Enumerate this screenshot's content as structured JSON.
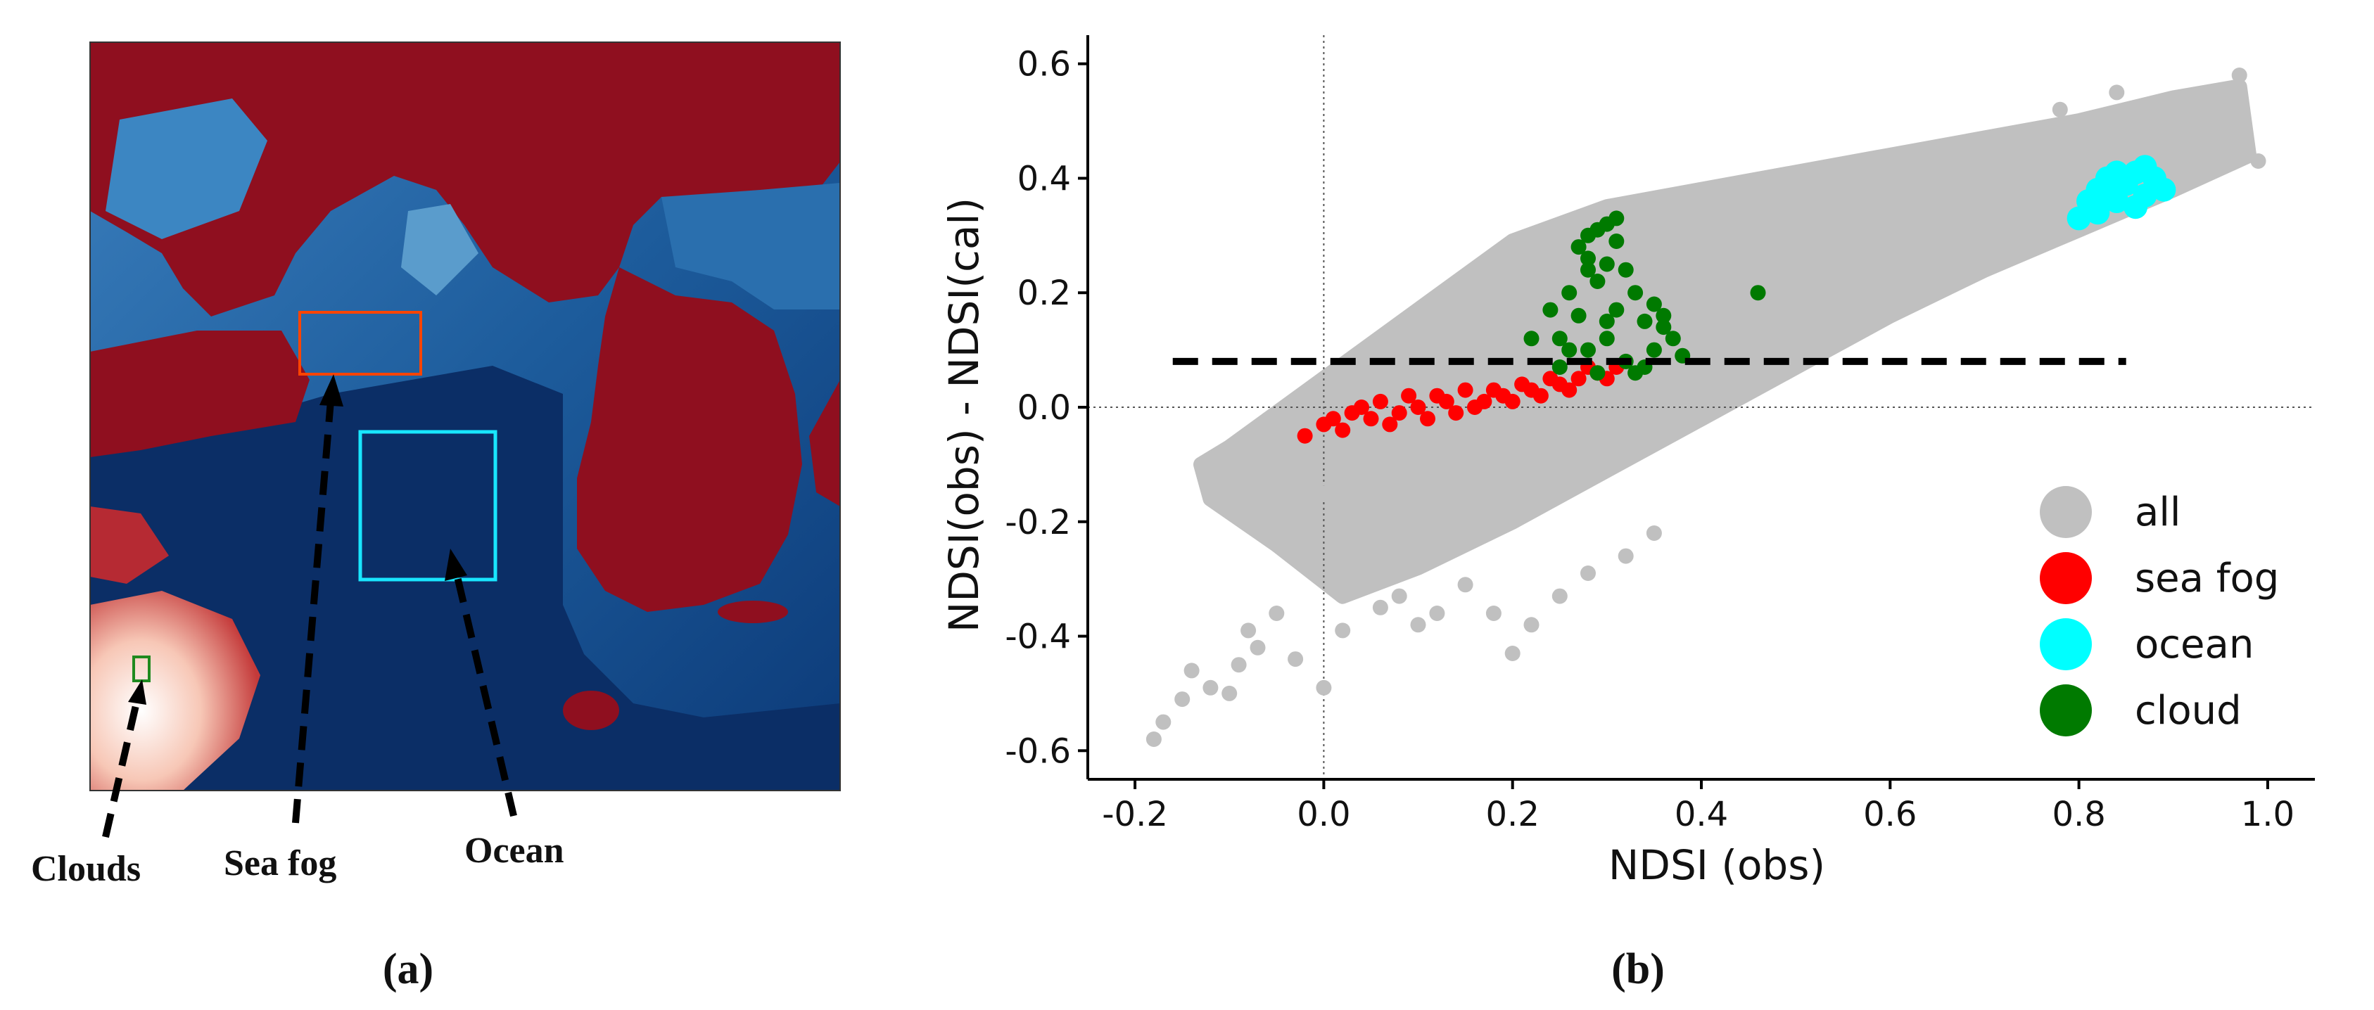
{
  "colors": {
    "land": "#8f0f1f",
    "ocean_deep": "#0b2e66",
    "ocean_mid": "#2466a6",
    "ocean_light": "#8fc3e0",
    "cloud": "#fde1d3",
    "fog_box": "#ff4400",
    "ocean_box": "#19e6ff",
    "cloud_box": "#1f8a1f",
    "all": "#c0c0c0",
    "sea_fog": "#ff0000",
    "ocean": "#00ffff",
    "cloud_pt": "#007a00"
  },
  "map": {
    "label_clouds": "Clouds",
    "label_sea_fog": "Sea fog",
    "label_ocean": "Ocean",
    "caption": "(a)"
  },
  "chart_data": {
    "type": "scatter",
    "title": "",
    "xlabel": "NDSI (obs)",
    "ylabel": "NDSI(obs) - NDSI(cal)",
    "xlim": [
      -0.25,
      1.05
    ],
    "ylim": [
      -0.65,
      0.65
    ],
    "xticks": [
      -0.2,
      0.0,
      0.2,
      0.4,
      0.6,
      0.8,
      1.0
    ],
    "xtick_labels": [
      "-0.2",
      "0.0",
      "0.2",
      "0.4",
      "0.6",
      "0.8",
      "1.0"
    ],
    "yticks": [
      -0.6,
      -0.4,
      -0.2,
      0.0,
      0.2,
      0.4,
      0.6
    ],
    "ytick_labels": [
      "-0.6",
      "-0.4",
      "-0.2",
      "0.0",
      "0.2",
      "0.4",
      "0.6"
    ],
    "reference_lines": {
      "x": 0.0,
      "y": 0.0
    },
    "threshold_line": {
      "y": 0.08,
      "x_start": -0.16,
      "x_end": 0.85
    },
    "all_envelope": [
      [
        -0.1,
        -0.07
      ],
      [
        0.0,
        0.05
      ],
      [
        0.1,
        0.17
      ],
      [
        0.2,
        0.29
      ],
      [
        0.3,
        0.35
      ],
      [
        0.4,
        0.38
      ],
      [
        0.5,
        0.41
      ],
      [
        0.6,
        0.44
      ],
      [
        0.7,
        0.47
      ],
      [
        0.8,
        0.5
      ],
      [
        0.9,
        0.54
      ],
      [
        0.97,
        0.56
      ],
      [
        0.98,
        0.44
      ],
      [
        0.9,
        0.38
      ],
      [
        0.8,
        0.31
      ],
      [
        0.7,
        0.24
      ],
      [
        0.6,
        0.16
      ],
      [
        0.5,
        0.07
      ],
      [
        0.4,
        -0.02
      ],
      [
        0.3,
        -0.11
      ],
      [
        0.2,
        -0.2
      ],
      [
        0.1,
        -0.28
      ],
      [
        0.02,
        -0.33
      ],
      [
        -0.05,
        -0.24
      ],
      [
        -0.12,
        -0.16
      ],
      [
        -0.13,
        -0.1
      ]
    ],
    "series": [
      {
        "name": "all",
        "color": "#c0c0c0",
        "points": [
          [
            -0.18,
            -0.58
          ],
          [
            -0.17,
            -0.55
          ],
          [
            -0.15,
            -0.51
          ],
          [
            -0.14,
            -0.46
          ],
          [
            -0.12,
            -0.49
          ],
          [
            -0.1,
            -0.5
          ],
          [
            -0.09,
            -0.45
          ],
          [
            -0.08,
            -0.39
          ],
          [
            -0.07,
            -0.42
          ],
          [
            -0.05,
            -0.36
          ],
          [
            -0.03,
            -0.44
          ],
          [
            0.0,
            -0.49
          ],
          [
            0.02,
            -0.39
          ],
          [
            0.04,
            -0.3
          ],
          [
            0.06,
            -0.35
          ],
          [
            0.08,
            -0.33
          ],
          [
            0.1,
            -0.38
          ],
          [
            0.12,
            -0.36
          ],
          [
            0.15,
            -0.31
          ],
          [
            0.18,
            -0.36
          ],
          [
            0.2,
            -0.43
          ],
          [
            0.22,
            -0.38
          ],
          [
            0.25,
            -0.33
          ],
          [
            0.28,
            -0.29
          ],
          [
            0.32,
            -0.26
          ],
          [
            0.35,
            -0.22
          ],
          [
            0.04,
            -0.22
          ],
          [
            0.0,
            -0.15
          ],
          [
            0.97,
            0.58
          ],
          [
            0.95,
            0.53
          ],
          [
            0.99,
            0.43
          ],
          [
            0.92,
            0.47
          ],
          [
            0.62,
            0.4
          ],
          [
            0.5,
            0.37
          ],
          [
            0.78,
            0.52
          ],
          [
            0.84,
            0.55
          ],
          [
            0.7,
            0.46
          ]
        ]
      },
      {
        "name": "sea fog",
        "color": "#ff0000",
        "points": [
          [
            -0.02,
            -0.05
          ],
          [
            0.0,
            -0.03
          ],
          [
            0.02,
            -0.04
          ],
          [
            0.03,
            -0.01
          ],
          [
            0.05,
            -0.02
          ],
          [
            0.06,
            0.01
          ],
          [
            0.08,
            -0.01
          ],
          [
            0.09,
            0.02
          ],
          [
            0.1,
            0.0
          ],
          [
            0.12,
            0.02
          ],
          [
            0.13,
            0.01
          ],
          [
            0.15,
            0.03
          ],
          [
            0.16,
            0.0
          ],
          [
            0.18,
            0.03
          ],
          [
            0.19,
            0.02
          ],
          [
            0.21,
            0.04
          ],
          [
            0.22,
            0.03
          ],
          [
            0.24,
            0.05
          ],
          [
            0.25,
            0.04
          ],
          [
            0.27,
            0.05
          ],
          [
            0.29,
            0.06
          ],
          [
            0.31,
            0.07
          ],
          [
            0.07,
            -0.03
          ],
          [
            0.11,
            -0.02
          ],
          [
            0.14,
            -0.01
          ],
          [
            0.17,
            0.01
          ],
          [
            0.2,
            0.01
          ],
          [
            0.23,
            0.02
          ],
          [
            0.26,
            0.03
          ],
          [
            0.04,
            0.0
          ],
          [
            0.01,
            -0.02
          ],
          [
            0.28,
            0.07
          ],
          [
            0.3,
            0.05
          ]
        ]
      },
      {
        "name": "ocean",
        "color": "#00ffff",
        "points": [
          [
            0.8,
            0.33
          ],
          [
            0.81,
            0.36
          ],
          [
            0.82,
            0.38
          ],
          [
            0.83,
            0.4
          ],
          [
            0.84,
            0.36
          ],
          [
            0.85,
            0.39
          ],
          [
            0.86,
            0.41
          ],
          [
            0.87,
            0.37
          ],
          [
            0.88,
            0.4
          ],
          [
            0.89,
            0.38
          ],
          [
            0.82,
            0.34
          ],
          [
            0.84,
            0.41
          ],
          [
            0.86,
            0.35
          ],
          [
            0.87,
            0.42
          ],
          [
            0.83,
            0.37
          ]
        ]
      },
      {
        "name": "cloud",
        "color": "#007a00",
        "points": [
          [
            0.27,
            0.28
          ],
          [
            0.28,
            0.3
          ],
          [
            0.29,
            0.31
          ],
          [
            0.3,
            0.32
          ],
          [
            0.31,
            0.33
          ],
          [
            0.28,
            0.26
          ],
          [
            0.3,
            0.25
          ],
          [
            0.29,
            0.22
          ],
          [
            0.32,
            0.24
          ],
          [
            0.33,
            0.2
          ],
          [
            0.31,
            0.17
          ],
          [
            0.34,
            0.15
          ],
          [
            0.35,
            0.18
          ],
          [
            0.36,
            0.14
          ],
          [
            0.37,
            0.12
          ],
          [
            0.3,
            0.12
          ],
          [
            0.32,
            0.08
          ],
          [
            0.34,
            0.07
          ],
          [
            0.35,
            0.1
          ],
          [
            0.26,
            0.2
          ],
          [
            0.27,
            0.16
          ],
          [
            0.25,
            0.12
          ],
          [
            0.28,
            0.1
          ],
          [
            0.22,
            0.12
          ],
          [
            0.25,
            0.07
          ],
          [
            0.29,
            0.06
          ],
          [
            0.33,
            0.06
          ],
          [
            0.3,
            0.15
          ],
          [
            0.26,
            0.1
          ],
          [
            0.46,
            0.2
          ],
          [
            0.38,
            0.09
          ],
          [
            0.36,
            0.16
          ],
          [
            0.24,
            0.17
          ],
          [
            0.31,
            0.29
          ],
          [
            0.28,
            0.24
          ]
        ]
      }
    ],
    "legend": {
      "position": "bottom-right",
      "entries": [
        {
          "label": "all",
          "color": "#c0c0c0"
        },
        {
          "label": "sea fog",
          "color": "#ff0000"
        },
        {
          "label": "ocean",
          "color": "#00ffff"
        },
        {
          "label": "cloud",
          "color": "#007a00"
        }
      ]
    },
    "caption": "(b)"
  }
}
